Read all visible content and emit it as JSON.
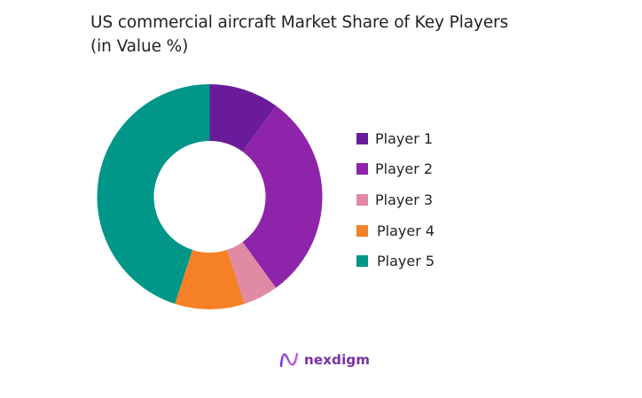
{
  "title": {
    "line1": "US commercial aircraft Market Share of Key Players",
    "line2": "(in Value %)"
  },
  "legend": {
    "items": [
      {
        "label": "Player 1",
        "color": "#6A1B9A"
      },
      {
        "label": "Player 2",
        "color": "#8E24AA"
      },
      {
        "label": "Player 3",
        "color": "#E08AA4"
      },
      {
        "label": "Player 4",
        "color": "#F58025"
      },
      {
        "label": "Player 5",
        "color": "#009688"
      }
    ]
  },
  "logo": {
    "text": "nexdigm",
    "color": "#7B2FA8"
  },
  "chart_data": {
    "type": "pie",
    "subtype": "donut",
    "title": "US commercial aircraft Market Share of Key Players (in Value %)",
    "categories": [
      "Player 1",
      "Player 2",
      "Player 3",
      "Player 4",
      "Player 5"
    ],
    "values": [
      10,
      30,
      5,
      10,
      45
    ],
    "colors": [
      "#6A1B9A",
      "#8E24AA",
      "#E08AA4",
      "#F58025",
      "#009688"
    ],
    "unit": "%",
    "start_angle": "12 o'clock, clockwise",
    "legend_position": "right",
    "data_labels": false
  }
}
